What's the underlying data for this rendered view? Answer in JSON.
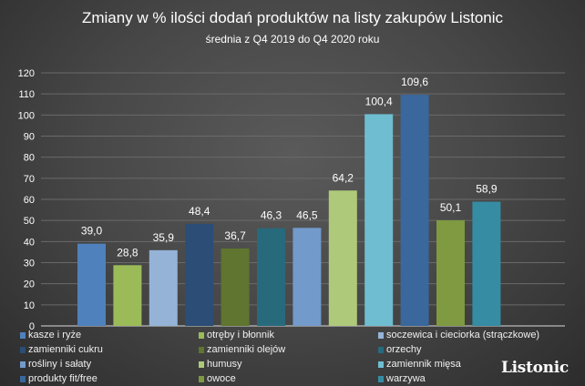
{
  "chart_data": {
    "type": "bar",
    "title": "Zmiany w % ilości dodań produktów na listy zakupów Listonic",
    "subtitle": "średnia z Q4 2019 do Q4 2020 roku",
    "xlabel": "",
    "ylabel": "",
    "ylim": [
      0,
      120
    ],
    "yticks": [
      0,
      10,
      20,
      30,
      40,
      50,
      60,
      70,
      80,
      90,
      100,
      110,
      120
    ],
    "grid": true,
    "legend_position": "bottom",
    "series": [
      {
        "name": "kasze i ryże",
        "value": 39.0,
        "label": "39,0",
        "color": "#4f81bd"
      },
      {
        "name": "otręby i błonnik",
        "value": 28.8,
        "label": "28,8",
        "color": "#9bbb59"
      },
      {
        "name": "soczewica i cieciorka (strączkowe)",
        "value": 35.9,
        "label": "35,9",
        "color": "#95b3d7"
      },
      {
        "name": "zamienniki cukru",
        "value": 48.4,
        "label": "48,4",
        "color": "#2c4d75"
      },
      {
        "name": "zamienniki olejów",
        "value": 36.7,
        "label": "36,7",
        "color": "#5f7530"
      },
      {
        "name": "orzechy",
        "value": 46.3,
        "label": "46,3",
        "color": "#276a7c"
      },
      {
        "name": "rośliny i sałaty",
        "value": 46.5,
        "label": "46,5",
        "color": "#729aca"
      },
      {
        "name": "humusy",
        "value": 64.2,
        "label": "64,2",
        "color": "#afc97a"
      },
      {
        "name": "zamiennik mięsa",
        "value": 100.4,
        "label": "100,4",
        "color": "#6fbdd1"
      },
      {
        "name": "produkty fit/free",
        "value": 109.6,
        "label": "109,6",
        "color": "#3a679c"
      },
      {
        "name": "owoce",
        "value": 50.1,
        "label": "50,1",
        "color": "#7f9a41"
      },
      {
        "name": "warzywa",
        "value": 58.9,
        "label": "58,9",
        "color": "#358ca3"
      }
    ]
  },
  "logo": "Listonic"
}
